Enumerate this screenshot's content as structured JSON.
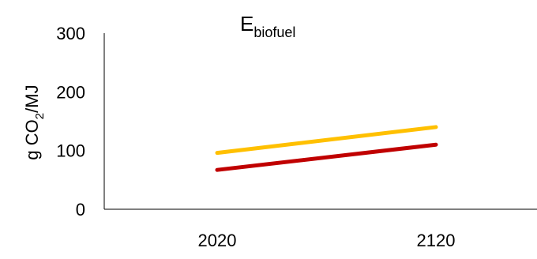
{
  "chart_data": {
    "type": "line",
    "title_main": "E",
    "title_sub": "biofuel",
    "ylabel_pre": "g CO",
    "ylabel_sub": "2",
    "ylabel_post": "/MJ",
    "x": [
      "2020",
      "2120"
    ],
    "ylim": [
      0,
      300
    ],
    "yticks": [
      0,
      100,
      200,
      300
    ],
    "grid": false,
    "legend": "none",
    "series": [
      {
        "values": [
          96,
          140
        ],
        "color": "#FFC000"
      },
      {
        "values": [
          67,
          110
        ],
        "color": "#C00000"
      }
    ]
  }
}
